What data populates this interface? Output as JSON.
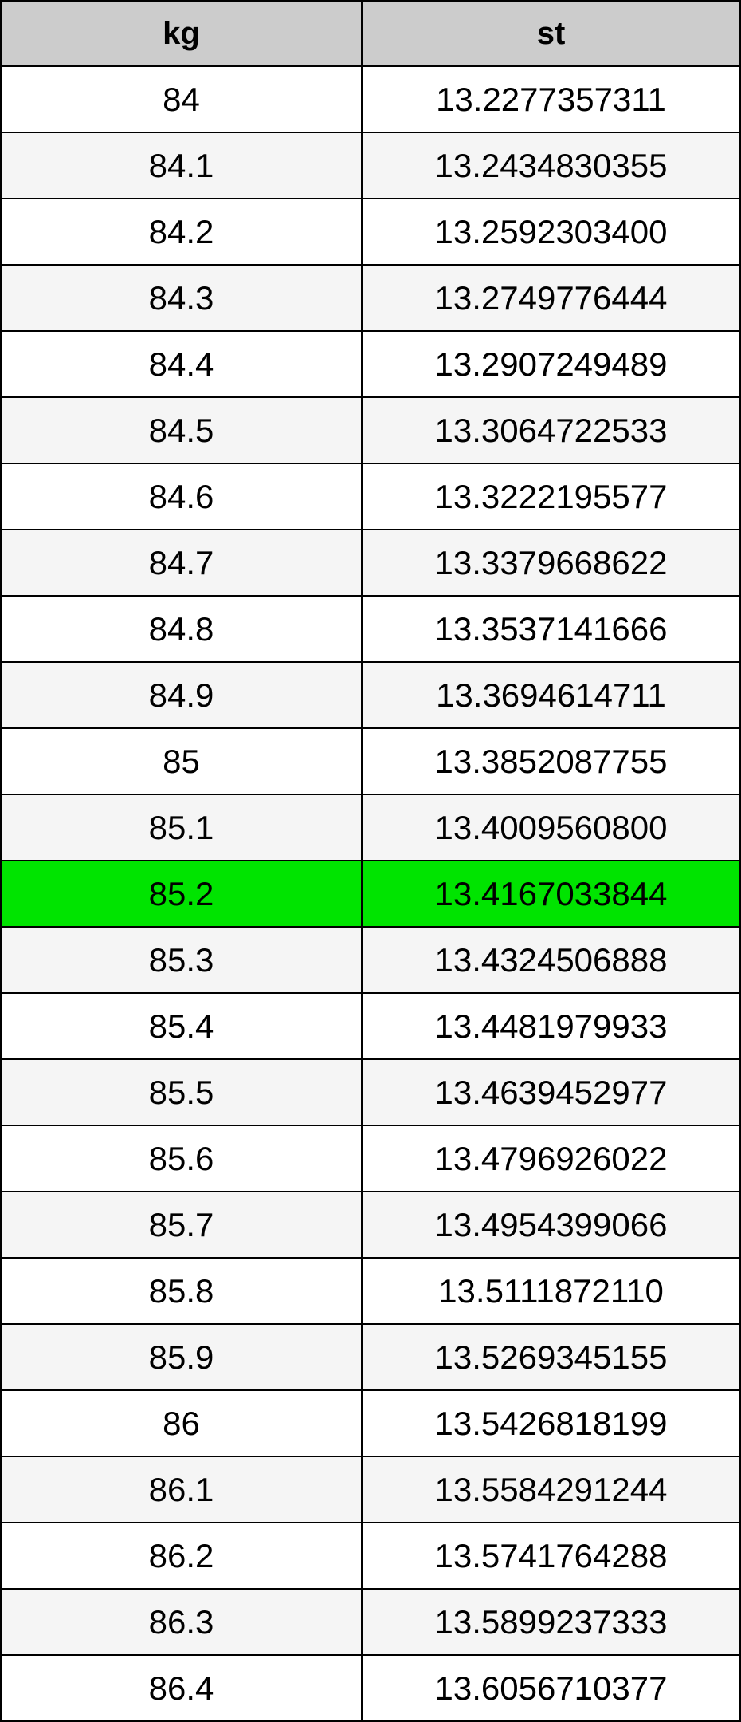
{
  "chart_data": {
    "type": "table",
    "columns": [
      "kg",
      "st"
    ],
    "rows": [
      [
        "84",
        "13.2277357311"
      ],
      [
        "84.1",
        "13.2434830355"
      ],
      [
        "84.2",
        "13.2592303400"
      ],
      [
        "84.3",
        "13.2749776444"
      ],
      [
        "84.4",
        "13.2907249489"
      ],
      [
        "84.5",
        "13.3064722533"
      ],
      [
        "84.6",
        "13.3222195577"
      ],
      [
        "84.7",
        "13.3379668622"
      ],
      [
        "84.8",
        "13.3537141666"
      ],
      [
        "84.9",
        "13.3694614711"
      ],
      [
        "85",
        "13.3852087755"
      ],
      [
        "85.1",
        "13.4009560800"
      ],
      [
        "85.2",
        "13.4167033844"
      ],
      [
        "85.3",
        "13.4324506888"
      ],
      [
        "85.4",
        "13.4481979933"
      ],
      [
        "85.5",
        "13.4639452977"
      ],
      [
        "85.6",
        "13.4796926022"
      ],
      [
        "85.7",
        "13.4954399066"
      ],
      [
        "85.8",
        "13.5111872110"
      ],
      [
        "85.9",
        "13.5269345155"
      ],
      [
        "86",
        "13.5426818199"
      ],
      [
        "86.1",
        "13.5584291244"
      ],
      [
        "86.2",
        "13.5741764288"
      ],
      [
        "86.3",
        "13.5899237333"
      ],
      [
        "86.4",
        "13.6056710377"
      ]
    ],
    "highlighted_row": {
      "index": 12,
      "kg": "85.2",
      "st": "13.4167033844"
    },
    "layout_hints": {
      "striped": true,
      "first_data_row_background": "white",
      "header_position": "top"
    }
  },
  "colors": {
    "header_bg": "#cccccc",
    "row_bg": "#ffffff",
    "row_alt_bg": "#f5f5f5",
    "highlight_bg": "#00e400",
    "border": "#000000",
    "text": "#000000"
  }
}
